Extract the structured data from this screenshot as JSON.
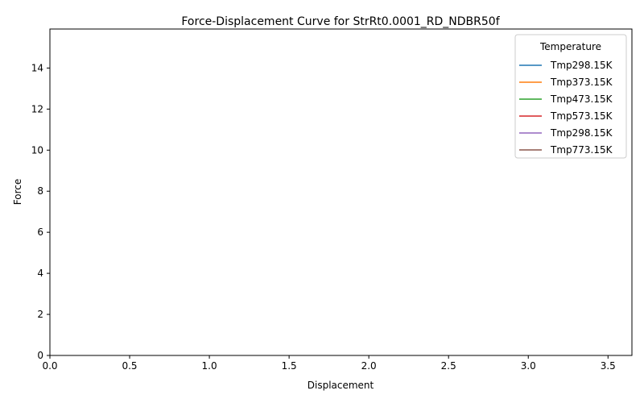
{
  "chart_data": {
    "type": "line",
    "title": "Force-Displacement Curve for StrRt0.0001_RD_NDBR50f",
    "xlabel": "Displacement",
    "ylabel": "Force",
    "xlim": [
      0,
      3.65
    ],
    "ylim": [
      0,
      15.9
    ],
    "xticks": [
      "0.0",
      "0.5",
      "1.0",
      "1.5",
      "2.0",
      "2.5",
      "3.0",
      "3.5"
    ],
    "yticks": [
      "0",
      "2",
      "4",
      "6",
      "8",
      "10",
      "12",
      "14"
    ],
    "grid": false,
    "legend": {
      "title": "Temperature",
      "position": "top-right"
    },
    "series": [
      {
        "name": "Tmp298.15K",
        "color": "#1f77b4",
        "x": [],
        "y": []
      },
      {
        "name": "Tmp373.15K",
        "color": "#ff7f0e",
        "x": [],
        "y": []
      },
      {
        "name": "Tmp473.15K",
        "color": "#2ca02c",
        "x": [],
        "y": []
      },
      {
        "name": "Tmp573.15K",
        "color": "#d62728",
        "x": [],
        "y": []
      },
      {
        "name": "Tmp298.15K",
        "color": "#9467bd",
        "x": [],
        "y": []
      },
      {
        "name": "Tmp773.15K",
        "color": "#8c564b",
        "x": [],
        "y": []
      }
    ]
  }
}
